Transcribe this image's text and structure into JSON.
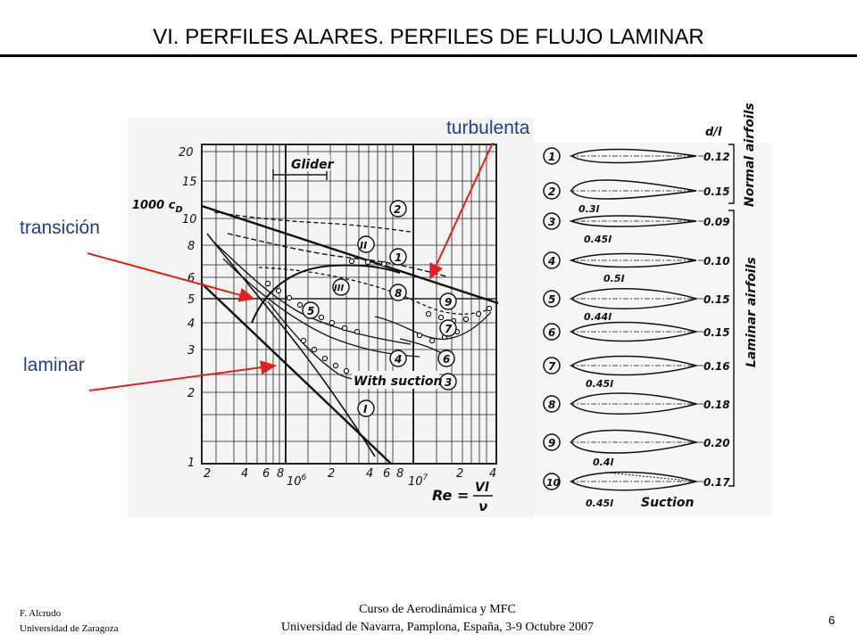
{
  "slide": {
    "title": "VI. PERFILES ALARES. PERFILES DE FLUJO LAMINAR",
    "page_number": "6"
  },
  "footer": {
    "author": "F. Alcrudo",
    "affiliation": "Universidad de Zaragoza",
    "course": "Curso de Aerodinámica y MFC",
    "venue": "Universidad de Navarra, Pamplona, España, 3-9 Octubre 2007"
  },
  "callouts": {
    "turbulenta": "turbulenta",
    "transicion": "transición",
    "laminar": "laminar"
  },
  "chart": {
    "y_axis_label": "1000 c",
    "y_axis_sub": "D",
    "y_ticks": [
      "20",
      "15",
      "10",
      "8",
      "6",
      "5",
      "4",
      "3",
      "2",
      "1"
    ],
    "x_ticks_1": [
      "2",
      "4",
      "6",
      "8"
    ],
    "x_decade_1": "10",
    "x_decade_1_exp": "6",
    "x_ticks_2": [
      "2",
      "4",
      "6",
      "8"
    ],
    "x_decade_2": "10",
    "x_decade_2_exp": "7",
    "x_ticks_3": [
      "2",
      "4"
    ],
    "re_label": "Re =",
    "re_num": "Vl",
    "re_den": "ν",
    "glider_label": "Glider",
    "with_suction_label": "With suction",
    "curve_markers": [
      "2",
      "II",
      "1",
      "III",
      "8",
      "5",
      "9",
      "7",
      "4",
      "6",
      "3",
      "I"
    ]
  },
  "airfoils": {
    "column_header": "d/l",
    "group_normal": "Normal airfoils",
    "group_laminar": "Laminar airfoils",
    "suction_label": "Suction",
    "items": [
      {
        "n": "1",
        "ratio": "0.12",
        "pos": ""
      },
      {
        "n": "2",
        "ratio": "0.15",
        "pos": "0.3l"
      },
      {
        "n": "3",
        "ratio": "0.09",
        "pos": "0.45l"
      },
      {
        "n": "4",
        "ratio": "0.10",
        "pos": "0.5l"
      },
      {
        "n": "5",
        "ratio": "0.15",
        "pos": "0.44l"
      },
      {
        "n": "6",
        "ratio": "0.15",
        "pos": ""
      },
      {
        "n": "7",
        "ratio": "0.16",
        "pos": "0.45l"
      },
      {
        "n": "8",
        "ratio": "0.18",
        "pos": ""
      },
      {
        "n": "9",
        "ratio": "0.20",
        "pos": "0.4l"
      },
      {
        "n": "10",
        "ratio": "0.17",
        "pos": "0.45l"
      }
    ]
  }
}
